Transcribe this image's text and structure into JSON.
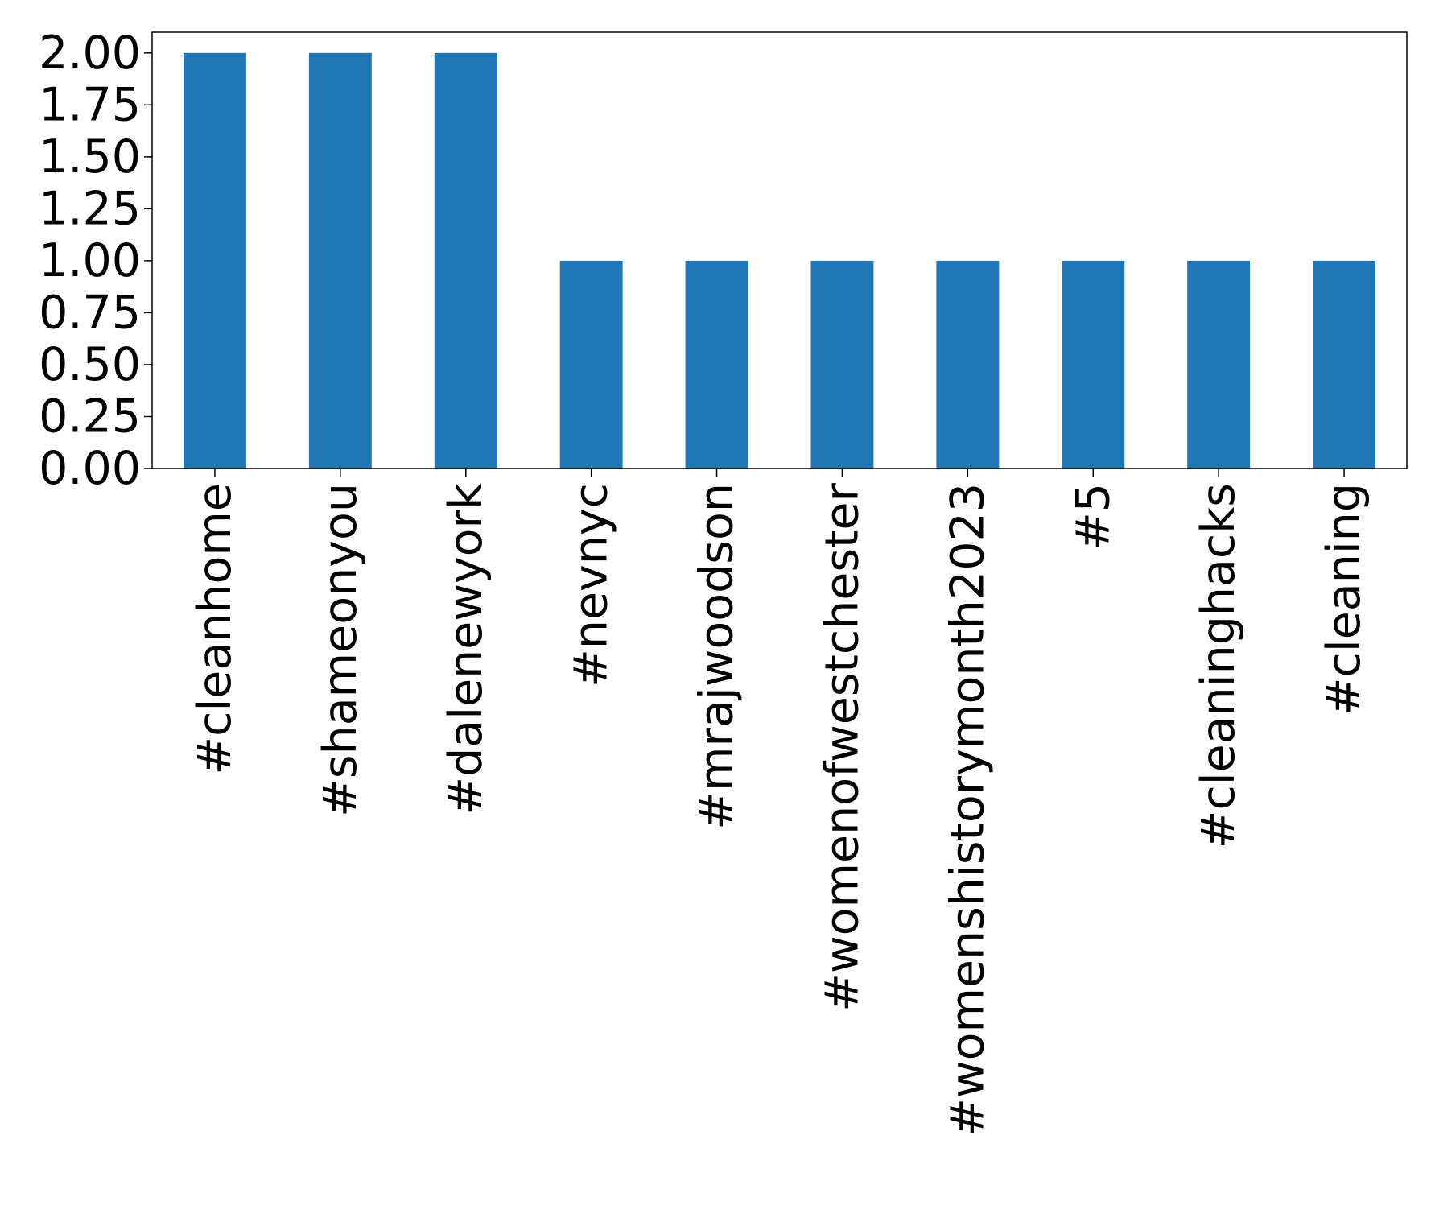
{
  "chart_data": {
    "type": "bar",
    "categories": [
      "#cleanhome",
      "#shameonyou",
      "#dalenewyork",
      "#nevnyc",
      "#mrajwoodson",
      "#womenofwestchester",
      "#womenshistorymonth2023",
      "#5",
      "#cleaninghacks",
      "#cleaning"
    ],
    "values": [
      2,
      2,
      2,
      1,
      1,
      1,
      1,
      1,
      1,
      1
    ],
    "color": "#1f77b4",
    "ylim": [
      0,
      2.1
    ],
    "yticks": [
      {
        "value": 0,
        "label": "0.00"
      },
      {
        "value": 0.25,
        "label": "0.25"
      },
      {
        "value": 0.5,
        "label": "0.50"
      },
      {
        "value": 0.75,
        "label": "0.75"
      },
      {
        "value": 1,
        "label": "1.00"
      },
      {
        "value": 1.25,
        "label": "1.25"
      },
      {
        "value": 1.5,
        "label": "1.50"
      },
      {
        "value": 1.75,
        "label": "1.75"
      },
      {
        "value": 2,
        "label": "2.00"
      }
    ],
    "grid": false
  }
}
